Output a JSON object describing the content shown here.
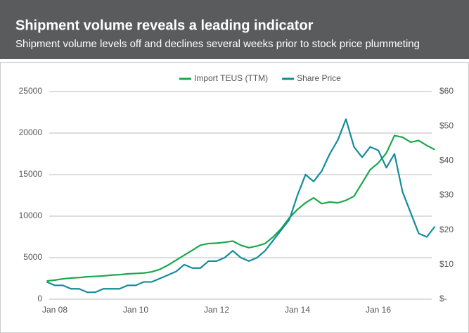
{
  "header": {
    "title": "Shipment volume reveals a leading indicator",
    "subtitle": "Shipment volume levels off and declines several weeks prior to stock price plummeting"
  },
  "chart_data": {
    "type": "line",
    "x": [
      2007.8,
      2008.0,
      2008.2,
      2008.4,
      2008.6,
      2008.8,
      2009.0,
      2009.2,
      2009.4,
      2009.6,
      2009.8,
      2010.0,
      2010.2,
      2010.4,
      2010.6,
      2010.8,
      2011.0,
      2011.2,
      2011.4,
      2011.6,
      2011.8,
      2012.0,
      2012.2,
      2012.4,
      2012.6,
      2012.8,
      2013.0,
      2013.2,
      2013.4,
      2013.6,
      2013.8,
      2014.0,
      2014.2,
      2014.4,
      2014.6,
      2014.8,
      2015.0,
      2015.2,
      2015.4,
      2015.6,
      2015.8,
      2016.0,
      2016.2,
      2016.4,
      2016.6,
      2016.8,
      2017.0,
      2017.2,
      2017.4
    ],
    "series": [
      {
        "name": "Import TEUS (TTM)",
        "color": "#1aa84a",
        "values": [
          2200,
          2300,
          2450,
          2550,
          2600,
          2700,
          2750,
          2800,
          2900,
          2950,
          3050,
          3100,
          3150,
          3300,
          3600,
          4100,
          4700,
          5300,
          5900,
          6500,
          6700,
          6750,
          6850,
          7000,
          6500,
          6200,
          6400,
          6700,
          7500,
          8500,
          9800,
          10800,
          11600,
          12200,
          11500,
          11700,
          11600,
          11900,
          12400,
          14000,
          15600,
          16400,
          17600,
          19700,
          19500,
          18900,
          19100,
          18500,
          18000
        ]
      },
      {
        "name": "Share Price",
        "color": "#138c99",
        "axis": "y2",
        "values": [
          5,
          4,
          4,
          3,
          3,
          2,
          2,
          3,
          3,
          3,
          4,
          4,
          5,
          5,
          6,
          7,
          8,
          10,
          9,
          9,
          11,
          11,
          12,
          14,
          12,
          11,
          12,
          14,
          17,
          20,
          23,
          30,
          36,
          34,
          37,
          42,
          46,
          52,
          44,
          41,
          44,
          43,
          38,
          42,
          31,
          25,
          19,
          18,
          21
        ]
      }
    ],
    "xlim": [
      2007.77,
      2017.45
    ],
    "xticks": [
      {
        "value": 2008,
        "label": "Jan 08"
      },
      {
        "value": 2010,
        "label": "Jan 10"
      },
      {
        "value": 2012,
        "label": "Jan 12"
      },
      {
        "value": 2014,
        "label": "Jan 14"
      },
      {
        "value": 2016,
        "label": "Jan 16"
      }
    ],
    "ylim": [
      0,
      25000
    ],
    "yticks": [
      0,
      5000,
      10000,
      15000,
      20000,
      25000
    ],
    "y2lim": [
      0,
      60
    ],
    "y2ticks": [
      {
        "value": 0,
        "label": "$-"
      },
      {
        "value": 10,
        "label": "$10"
      },
      {
        "value": 20,
        "label": "$20"
      },
      {
        "value": 30,
        "label": "$30"
      },
      {
        "value": 40,
        "label": "$40"
      },
      {
        "value": 50,
        "label": "$50"
      },
      {
        "value": 60,
        "label": "$60"
      }
    ],
    "grid": true,
    "legend": "top"
  }
}
